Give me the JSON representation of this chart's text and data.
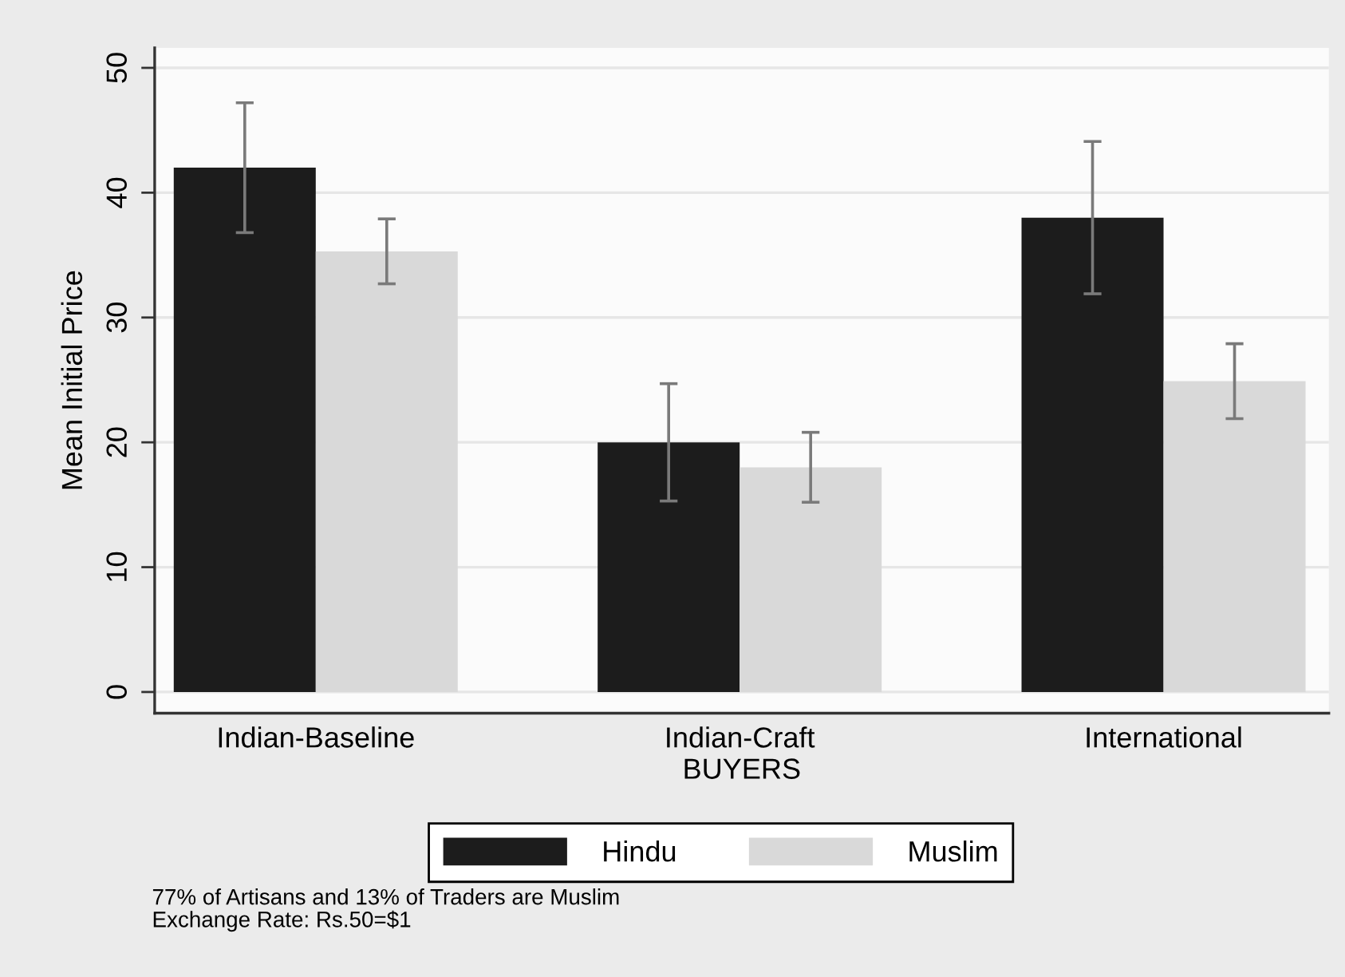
{
  "chart_data": {
    "type": "bar",
    "categories": [
      "Indian-Baseline",
      "Indian-Craft",
      "International"
    ],
    "xlabel": "BUYERS",
    "ylabel": "Mean Initial Price",
    "series": [
      {
        "name": "Hindu",
        "color": "#1c1c1c",
        "values": [
          42,
          20,
          38
        ],
        "errors": [
          5.2,
          4.7,
          6.1
        ]
      },
      {
        "name": "Muslim",
        "color": "#d9d9d9",
        "values": [
          35.3,
          18,
          24.9
        ],
        "errors": [
          2.6,
          2.8,
          3.0
        ]
      }
    ],
    "ylim": [
      -1.7,
      51.6
    ],
    "yticks": [
      0,
      10,
      20,
      30,
      40,
      50
    ],
    "grid": "y",
    "legend": "bottom",
    "annotations": [
      "77% of Artisans and 13% of Traders are Muslim",
      "Exchange Rate: Rs.50=$1"
    ]
  }
}
